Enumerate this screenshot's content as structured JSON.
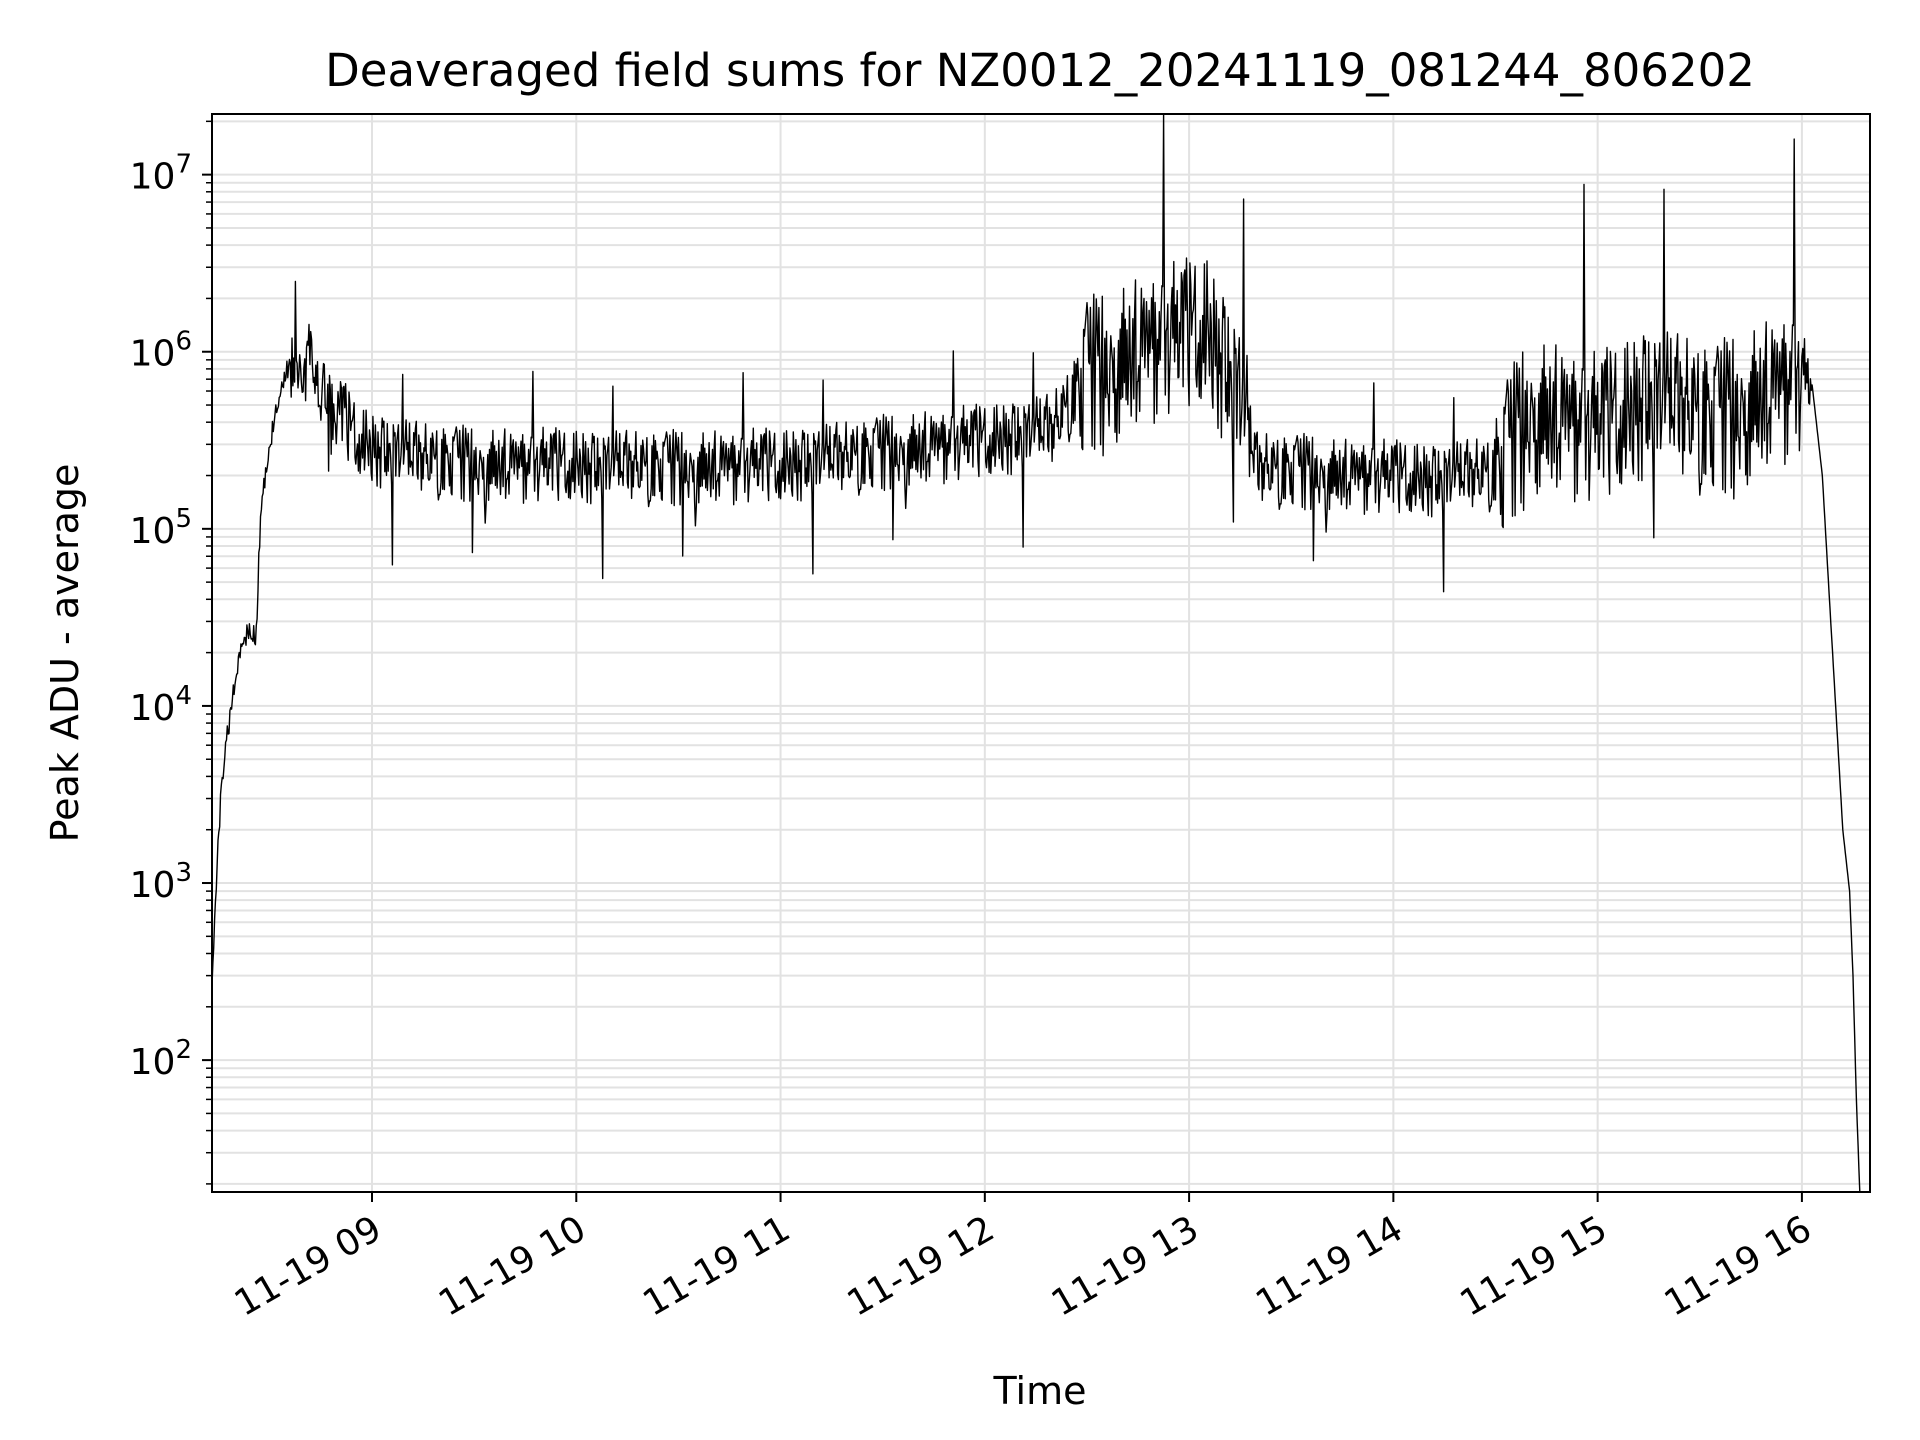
{
  "chart_data": {
    "type": "line",
    "title": "Deaveraged field sums for NZ0012_20241119_081244_806202",
    "xlabel": "Time",
    "ylabel": "Peak ADU - average",
    "y_scale": "log",
    "grid": "major and minor, light gray",
    "line_color": "#000000",
    "x_tick_labels": [
      "11-19 09",
      "11-19 10",
      "11-19 11",
      "11-19 12",
      "11-19 13",
      "11-19 14",
      "11-19 15",
      "11-19 16"
    ],
    "x_tick_hours": [
      9,
      10,
      11,
      12,
      13,
      14,
      15,
      16
    ],
    "x_tick_rotation": "30 degrees",
    "y_tick_labels": [
      {
        "base": "10",
        "exp": "2",
        "value": 100
      },
      {
        "base": "10",
        "exp": "3",
        "value": 1000
      },
      {
        "base": "10",
        "exp": "4",
        "value": 10000
      },
      {
        "base": "10",
        "exp": "5",
        "value": 100000
      },
      {
        "base": "10",
        "exp": "6",
        "value": 1000000
      },
      {
        "base": "10",
        "exp": "7",
        "value": 10000000
      }
    ],
    "x_range": [
      "2024-11-19 08:13",
      "2024-11-19 16:20"
    ],
    "y_range": [
      18,
      22000000
    ],
    "series": [
      {
        "points": [
          [
            "2024-11-19 08:13",
            300
          ],
          [
            "2024-11-19 08:14",
            800
          ],
          [
            "2024-11-19 08:15",
            2000
          ],
          [
            "2024-11-19 08:16",
            4000
          ],
          [
            "2024-11-19 08:18",
            8000
          ],
          [
            "2024-11-19 08:20",
            15000
          ],
          [
            "2024-11-19 08:22",
            22000
          ],
          [
            "2024-11-19 08:24",
            28000
          ],
          [
            "2024-11-19 08:26",
            25000
          ],
          [
            "2024-11-19 08:27",
            90000
          ],
          [
            "2024-11-19 08:28",
            160000
          ],
          [
            "2024-11-19 08:30",
            300000
          ],
          [
            "2024-11-19 08:32",
            500000
          ],
          [
            "2024-11-19 08:35",
            800000
          ],
          [
            "2024-11-19 08:38",
            1000000
          ],
          [
            "2024-11-19 08:41",
            900000
          ],
          [
            "2024-11-19 08:45",
            700000
          ],
          [
            "2024-11-19 08:50",
            500000
          ],
          [
            "2024-11-19 08:55",
            350000
          ],
          [
            "2024-11-19 09:00",
            300000
          ],
          [
            "2024-11-19 09:15",
            260000
          ],
          [
            "2024-11-19 09:30",
            240000
          ],
          [
            "2024-11-19 10:00",
            240000
          ],
          [
            "2024-11-19 10:30",
            230000
          ],
          [
            "2024-11-19 11:00",
            240000
          ],
          [
            "2024-11-19 11:30",
            280000
          ],
          [
            "2024-11-19 12:00",
            330000
          ],
          [
            "2024-11-19 12:20",
            380000
          ],
          [
            "2024-11-19 12:30",
            800000
          ],
          [
            "2024-11-19 12:50",
            1200000
          ],
          [
            "2024-11-19 13:05",
            1500000
          ],
          [
            "2024-11-19 13:15",
            600000
          ],
          [
            "2024-11-19 13:20",
            230000
          ],
          [
            "2024-11-19 13:45",
            210000
          ],
          [
            "2024-11-19 14:15",
            200000
          ],
          [
            "2024-11-19 14:30",
            220000
          ],
          [
            "2024-11-19 14:40",
            500000
          ],
          [
            "2024-11-19 15:00",
            400000
          ],
          [
            "2024-11-19 15:15",
            600000
          ],
          [
            "2024-11-19 15:35",
            450000
          ],
          [
            "2024-11-19 15:55",
            700000
          ],
          [
            "2024-11-19 16:00",
            800000
          ],
          [
            "2024-11-19 16:03",
            650000
          ],
          [
            "2024-11-19 16:06",
            200000
          ],
          [
            "2024-11-19 16:09",
            20000
          ],
          [
            "2024-11-19 16:12",
            2000
          ],
          [
            "2024-11-19 16:14",
            900
          ],
          [
            "2024-11-19 16:15",
            300
          ],
          [
            "2024-11-19 16:16",
            60
          ],
          [
            "2024-11-19 16:17",
            18
          ]
        ],
        "noise_note_removed": true
      }
    ]
  }
}
